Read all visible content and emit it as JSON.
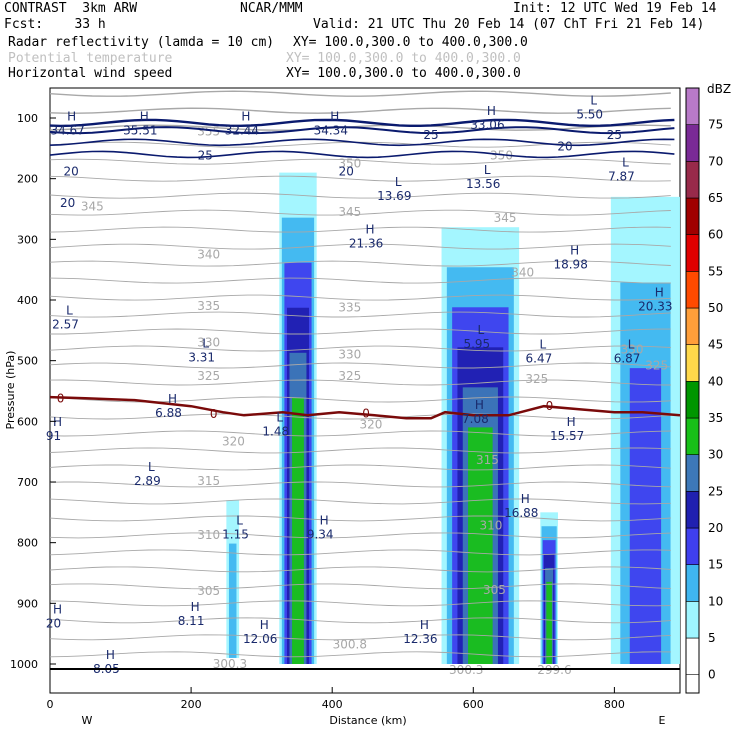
{
  "header": {
    "line1_left": "CONTRAST  3km ARW",
    "line1_mid": "NCAR/MMM",
    "line1_right": "Init: 12 UTC Wed 19 Feb 14",
    "line2_left": "Fcst:    33 h",
    "line2_right": "Valid: 21 UTC Thu 20 Feb 14 (07 ChT Fri 21 Feb 14)",
    "field1_name": "Radar reflectivity (lamda = 10 cm)",
    "field1_xy": "XY= 100.0,300.0 to 400.0,300.0",
    "field2_name": "Potential temperature",
    "field2_xy": "XY= 100.0,300.0 to 400.0,300.0",
    "field3_name": "Horizontal wind speed",
    "field3_xy": "XY= 100.0,300.0 to 400.0,300.0"
  },
  "colors": {
    "potential_temp": "#a8a8a8",
    "wind": "#0a1a6e",
    "freezing_line": "#7a0a0a",
    "legend_muted": "#c0c0c0"
  },
  "chart_data": {
    "type": "heatmap",
    "title": "",
    "xlabel": "Distance (km)",
    "ylabel": "Pressure (hPa)",
    "xlim": [
      0,
      893
    ],
    "x_ticks": [
      0,
      200,
      400,
      600,
      800
    ],
    "x_tick_labels": [
      "0",
      "200",
      "400",
      "600",
      "800"
    ],
    "x_end_labels": {
      "left": "W",
      "right": "E"
    },
    "ylim": [
      1020,
      50
    ],
    "y_ticks": [
      100,
      200,
      300,
      400,
      500,
      600,
      700,
      800,
      900,
      1000
    ],
    "y_tick_labels": [
      "100",
      "200",
      "300",
      "400",
      "500",
      "600",
      "700",
      "800",
      "900",
      "1000"
    ],
    "colorbar": {
      "unit": "dBZ",
      "levels": [
        0,
        5,
        10,
        15,
        20,
        25,
        30,
        35,
        40,
        45,
        50,
        55,
        60,
        65,
        70,
        75
      ],
      "level_labels": [
        "0",
        "5",
        "10",
        "15",
        "20",
        "25",
        "30",
        "35",
        "40",
        "45",
        "50",
        "55",
        "60",
        "65",
        "70",
        "75"
      ],
      "colors": [
        "#ffffff",
        "#9ff5ff",
        "#3fb6f0",
        "#3f3fee",
        "#2020b0",
        "#3d78b8",
        "#18c018",
        "#009600",
        "#ffd84a",
        "#ff9e3a",
        "#ff4a00",
        "#e00000",
        "#a00000",
        "#982a4a",
        "#7a2a96",
        "#b87ac8"
      ]
    },
    "reflectivity_cores": [
      {
        "x_range": [
          325,
          378
        ],
        "p_top": 190,
        "p_bottom": 1000,
        "max_dbz": 30
      },
      {
        "x_range": [
          555,
          665
        ],
        "p_top": 280,
        "p_bottom": 1000,
        "max_dbz": 30
      },
      {
        "x_range": [
          695,
          720
        ],
        "p_top": 750,
        "p_bottom": 1000,
        "max_dbz": 30
      },
      {
        "x_range": [
          795,
          893
        ],
        "p_top": 230,
        "p_bottom": 1000,
        "max_dbz": 15
      },
      {
        "x_range": [
          250,
          268
        ],
        "p_top": 730,
        "p_bottom": 990,
        "max_dbz": 10
      }
    ],
    "potential_temperature_labels": [
      {
        "x": 225,
        "p": 122,
        "text": "355"
      },
      {
        "x": 425,
        "p": 175,
        "text": "350"
      },
      {
        "x": 640,
        "p": 162,
        "text": "350"
      },
      {
        "x": 60,
        "p": 246,
        "text": "345"
      },
      {
        "x": 425,
        "p": 255,
        "text": "345"
      },
      {
        "x": 645,
        "p": 265,
        "text": "345"
      },
      {
        "x": 225,
        "p": 325,
        "text": "340"
      },
      {
        "x": 670,
        "p": 355,
        "text": "340"
      },
      {
        "x": 225,
        "p": 410,
        "text": "335"
      },
      {
        "x": 425,
        "p": 412,
        "text": "335"
      },
      {
        "x": 225,
        "p": 470,
        "text": "330"
      },
      {
        "x": 425,
        "p": 490,
        "text": "330"
      },
      {
        "x": 825,
        "p": 482,
        "text": "330"
      },
      {
        "x": 225,
        "p": 525,
        "text": "325"
      },
      {
        "x": 425,
        "p": 525,
        "text": "325"
      },
      {
        "x": 690,
        "p": 530,
        "text": "325"
      },
      {
        "x": 860,
        "p": 508,
        "text": "325"
      },
      {
        "x": 260,
        "p": 633,
        "text": "320"
      },
      {
        "x": 455,
        "p": 605,
        "text": "320"
      },
      {
        "x": 225,
        "p": 698,
        "text": "315"
      },
      {
        "x": 620,
        "p": 664,
        "text": "315"
      },
      {
        "x": 225,
        "p": 787,
        "text": "310"
      },
      {
        "x": 625,
        "p": 772,
        "text": "310"
      },
      {
        "x": 225,
        "p": 880,
        "text": "305"
      },
      {
        "x": 630,
        "p": 878,
        "text": "305"
      },
      {
        "x": 255,
        "p": 1000,
        "text": "300.3"
      },
      {
        "x": 425,
        "p": 968,
        "text": "300.8"
      },
      {
        "x": 590,
        "p": 1010,
        "text": "300.3"
      },
      {
        "x": 715,
        "p": 1010,
        "text": "299.6"
      }
    ],
    "wind_speed_contour_labels": [
      {
        "x": 540,
        "p": 128,
        "text": "25"
      },
      {
        "x": 800,
        "p": 128,
        "text": "25"
      },
      {
        "x": 730,
        "p": 147,
        "text": "20"
      },
      {
        "x": 220,
        "p": 162,
        "text": "25"
      },
      {
        "x": 30,
        "p": 188,
        "text": "20"
      },
      {
        "x": 420,
        "p": 188,
        "text": "20"
      },
      {
        "x": 25,
        "p": 240,
        "text": "20"
      }
    ],
    "extrema_markers": [
      {
        "kind": "H",
        "x": 25,
        "p": 104,
        "value": "34.67"
      },
      {
        "kind": "H",
        "x": 128,
        "p": 104,
        "value": "35.51"
      },
      {
        "kind": "H",
        "x": 272,
        "p": 104,
        "value": "32.44"
      },
      {
        "kind": "H",
        "x": 398,
        "p": 104,
        "value": "34.34"
      },
      {
        "kind": "H",
        "x": 620,
        "p": 95,
        "value": "33.06"
      },
      {
        "kind": "L",
        "x": 765,
        "p": 78,
        "value": "5.50"
      },
      {
        "kind": "L",
        "x": 810,
        "p": 180,
        "value": "7.87"
      },
      {
        "kind": "L",
        "x": 488,
        "p": 212,
        "value": "13.69"
      },
      {
        "kind": "L",
        "x": 614,
        "p": 192,
        "value": "13.56"
      },
      {
        "kind": "H",
        "x": 448,
        "p": 290,
        "value": "21.36"
      },
      {
        "kind": "H",
        "x": 738,
        "p": 325,
        "value": "18.98"
      },
      {
        "kind": "H",
        "x": 858,
        "p": 394,
        "value": "20.33"
      },
      {
        "kind": "L",
        "x": 22,
        "p": 424,
        "value": "2.57"
      },
      {
        "kind": "L",
        "x": 215,
        "p": 478,
        "value": "3.31"
      },
      {
        "kind": "L",
        "x": 605,
        "p": 456,
        "value": "5.95"
      },
      {
        "kind": "L",
        "x": 693,
        "p": 480,
        "value": "6.47"
      },
      {
        "kind": "L",
        "x": 818,
        "p": 480,
        "value": "6.87"
      },
      {
        "kind": "H",
        "x": 168,
        "p": 570,
        "value": "6.88"
      },
      {
        "kind": "H",
        "x": 603,
        "p": 580,
        "value": "7.08"
      },
      {
        "kind": "L",
        "x": 320,
        "p": 600,
        "value": "1.48"
      },
      {
        "kind": "H",
        "x": 733,
        "p": 608,
        "value": "15.57"
      },
      {
        "kind": "H",
        "x": 5,
        "p": 608,
        "value": "91"
      },
      {
        "kind": "L",
        "x": 138,
        "p": 682,
        "value": "2.89"
      },
      {
        "kind": "H",
        "x": 668,
        "p": 735,
        "value": "16.88"
      },
      {
        "kind": "L",
        "x": 263,
        "p": 770,
        "value": "1.15"
      },
      {
        "kind": "H",
        "x": 383,
        "p": 770,
        "value": "9.34"
      },
      {
        "kind": "H",
        "x": 5,
        "p": 917,
        "value": "20"
      },
      {
        "kind": "H",
        "x": 200,
        "p": 913,
        "value": "8.11"
      },
      {
        "kind": "H",
        "x": 298,
        "p": 942,
        "value": "12.06"
      },
      {
        "kind": "H",
        "x": 525,
        "p": 942,
        "value": "12.36"
      },
      {
        "kind": "H",
        "x": 80,
        "p": 992,
        "value": "8.05"
      }
    ],
    "freezing_line": {
      "label": "0",
      "points": [
        [
          0,
          560
        ],
        [
          50,
          562
        ],
        [
          120,
          565
        ],
        [
          200,
          575
        ],
        [
          245,
          585
        ],
        [
          275,
          590
        ],
        [
          330,
          585
        ],
        [
          365,
          590
        ],
        [
          410,
          585
        ],
        [
          460,
          590
        ],
        [
          505,
          595
        ],
        [
          540,
          595
        ],
        [
          560,
          585
        ],
        [
          600,
          590
        ],
        [
          650,
          590
        ],
        [
          700,
          575
        ],
        [
          750,
          580
        ],
        [
          800,
          585
        ],
        [
          840,
          585
        ],
        [
          893,
          590
        ]
      ],
      "marks": [
        {
          "x": 15,
          "p": 562
        },
        {
          "x": 232,
          "p": 588
        },
        {
          "x": 448,
          "p": 587
        },
        {
          "x": 708,
          "p": 575
        }
      ]
    }
  }
}
